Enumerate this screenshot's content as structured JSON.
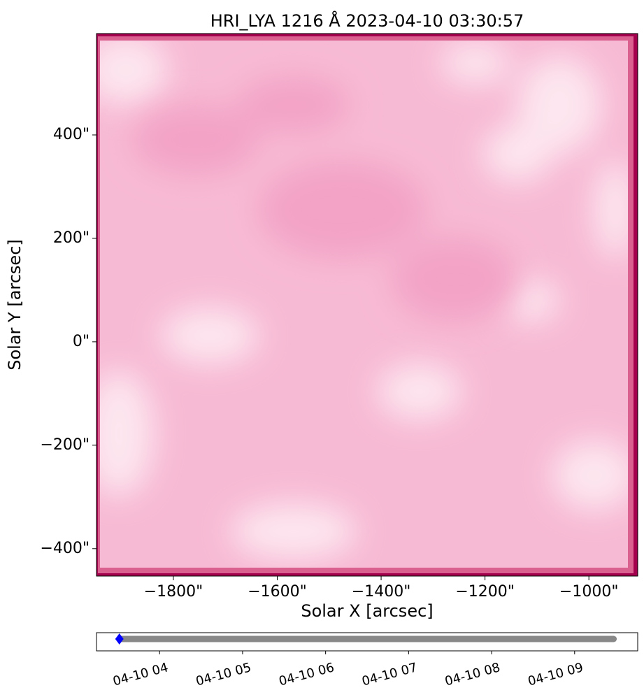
{
  "chart_data": [
    {
      "type": "image",
      "title": "HRI_LYA 1216 Å 2023-04-10 03:30:57",
      "xlabel": "Solar X [arcsec]",
      "ylabel": "Solar Y [arcsec]",
      "xlim": [
        -1948,
        -906
      ],
      "ylim": [
        -453,
        596
      ],
      "xticks": [
        {
          "value": -1800,
          "label": "−1800\""
        },
        {
          "value": -1600,
          "label": "−1600\""
        },
        {
          "value": -1400,
          "label": "−1400\""
        },
        {
          "value": -1200,
          "label": "−1200\""
        },
        {
          "value": -1000,
          "label": "−1000\""
        }
      ],
      "yticks": [
        {
          "value": -400,
          "label": "−400\""
        },
        {
          "value": -200,
          "label": "−200\""
        },
        {
          "value": 0,
          "label": "0\""
        },
        {
          "value": 200,
          "label": "200\""
        },
        {
          "value": 400,
          "label": "400\""
        }
      ]
    },
    {
      "type": "timeline",
      "xlim": [
        3.24,
        9.76
      ],
      "xticks": [
        {
          "value": 4,
          "label": "04-10 04"
        },
        {
          "value": 5,
          "label": "04-10 05"
        },
        {
          "value": 6,
          "label": "04-10 06"
        },
        {
          "value": 7,
          "label": "04-10 07"
        },
        {
          "value": 8,
          "label": "04-10 08"
        },
        {
          "value": 9,
          "label": "04-10 09"
        }
      ],
      "x": [
        3.516,
        9.47
      ],
      "color": "#888888",
      "marker": 3.516,
      "marker_color": "#0000ff"
    }
  ]
}
